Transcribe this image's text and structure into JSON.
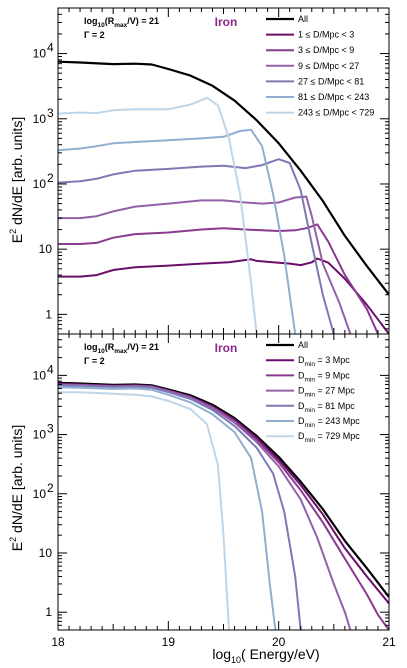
{
  "figure": {
    "x_axis_label": "log10( Energy/eV)",
    "x_label_main": "log",
    "x_label_sub": "10",
    "x_label_rest": "( Energy/eV)",
    "y_axis_label": "E2 dN/dE [arb. units]",
    "y_label_E": "E",
    "y_label_sup": "2",
    "y_label_rest": " dN/dE [arb. units]"
  },
  "chart_data": [
    {
      "type": "line",
      "header": {
        "rmax_log": "log",
        "rmax_sub": "10",
        "rmax_paren_open": "(R",
        "rmax_sub2": "max",
        "rmax_rest": "/V) = 21",
        "gamma": "Γ = 2"
      },
      "element_label": "Iron",
      "element_color": "#8b2a8b",
      "xlim": [
        18,
        21
      ],
      "ylim": [
        0.5,
        50000
      ],
      "log_y": true,
      "x_ticks": [
        "18",
        "19",
        "20",
        "21"
      ],
      "y_ticks": [
        {
          "value": 1,
          "label": "1"
        },
        {
          "value": 10,
          "label": "10"
        },
        {
          "value": 100,
          "label": "10",
          "sup": "2"
        },
        {
          "value": 1000,
          "label": "10",
          "sup": "3"
        },
        {
          "value": 10000,
          "label": "10",
          "sup": "4"
        }
      ],
      "legend_position": "top-right",
      "series": [
        {
          "name": "All",
          "color": "#000000",
          "width": 2.2,
          "points": [
            [
              18.0,
              7500
            ],
            [
              18.2,
              7300
            ],
            [
              18.5,
              6900
            ],
            [
              18.7,
              7000
            ],
            [
              18.85,
              6800
            ],
            [
              19.0,
              5800
            ],
            [
              19.2,
              4600
            ],
            [
              19.4,
              3200
            ],
            [
              19.6,
              1900
            ],
            [
              19.8,
              950
            ],
            [
              20.0,
              420
            ],
            [
              20.2,
              160
            ],
            [
              20.4,
              55
            ],
            [
              20.6,
              16
            ],
            [
              20.8,
              5.5
            ],
            [
              21.0,
              2.0
            ]
          ]
        },
        {
          "name": "1 ≤ D/Mpc < 3",
          "color": "#6b0e6b",
          "width": 2,
          "points": [
            [
              18.0,
              3.8
            ],
            [
              18.2,
              3.8
            ],
            [
              18.35,
              4.0
            ],
            [
              18.5,
              4.8
            ],
            [
              18.7,
              5.3
            ],
            [
              19.0,
              5.6
            ],
            [
              19.3,
              6.0
            ],
            [
              19.55,
              6.3
            ],
            [
              19.75,
              7.0
            ],
            [
              19.8,
              6.6
            ],
            [
              20.0,
              6.2
            ],
            [
              20.1,
              6.0
            ],
            [
              20.2,
              5.7
            ],
            [
              20.3,
              6.3
            ],
            [
              20.35,
              7.2
            ],
            [
              20.45,
              6.2
            ],
            [
              20.6,
              3.5
            ],
            [
              20.8,
              1.4
            ],
            [
              21.0,
              0.5
            ]
          ]
        },
        {
          "name": "3 ≤ D/Mpc < 9",
          "color": "#8a3a8f",
          "width": 2,
          "points": [
            [
              18.0,
              12
            ],
            [
              18.2,
              12
            ],
            [
              18.35,
              12.5
            ],
            [
              18.5,
              15
            ],
            [
              18.7,
              17
            ],
            [
              19.0,
              18
            ],
            [
              19.3,
              20
            ],
            [
              19.5,
              21
            ],
            [
              19.7,
              20
            ],
            [
              19.85,
              19.5
            ],
            [
              20.0,
              19
            ],
            [
              20.15,
              19.5
            ],
            [
              20.25,
              21
            ],
            [
              20.35,
              24
            ],
            [
              20.45,
              13
            ],
            [
              20.6,
              4
            ],
            [
              20.8,
              1.2
            ],
            [
              20.9,
              0.5
            ]
          ]
        },
        {
          "name": "9 ≤ D/Mpc < 27",
          "color": "#9460a8",
          "width": 2,
          "points": [
            [
              18.0,
              30
            ],
            [
              18.2,
              30
            ],
            [
              18.35,
              32
            ],
            [
              18.5,
              38
            ],
            [
              18.7,
              45
            ],
            [
              19.0,
              50
            ],
            [
              19.3,
              56
            ],
            [
              19.5,
              56
            ],
            [
              19.7,
              52
            ],
            [
              19.85,
              50
            ],
            [
              20.0,
              52
            ],
            [
              20.15,
              62
            ],
            [
              20.25,
              64
            ],
            [
              20.3,
              32
            ],
            [
              20.4,
              6
            ],
            [
              20.55,
              1.5
            ],
            [
              20.65,
              0.5
            ]
          ]
        },
        {
          "name": "27 ≤ D/Mpc < 81",
          "color": "#7c7ab5",
          "width": 2,
          "points": [
            [
              18.0,
              105
            ],
            [
              18.2,
              110
            ],
            [
              18.35,
              120
            ],
            [
              18.5,
              140
            ],
            [
              18.7,
              160
            ],
            [
              19.0,
              170
            ],
            [
              19.3,
              185
            ],
            [
              19.5,
              190
            ],
            [
              19.7,
              175
            ],
            [
              19.85,
              195
            ],
            [
              20.0,
              240
            ],
            [
              20.1,
              210
            ],
            [
              20.2,
              80
            ],
            [
              20.3,
              12
            ],
            [
              20.4,
              2
            ],
            [
              20.5,
              0.5
            ]
          ]
        },
        {
          "name": "81 ≤ D/Mpc < 243",
          "color": "#90aed0",
          "width": 2,
          "points": [
            [
              18.0,
              330
            ],
            [
              18.2,
              350
            ],
            [
              18.35,
              380
            ],
            [
              18.5,
              420
            ],
            [
              18.7,
              440
            ],
            [
              19.0,
              470
            ],
            [
              19.3,
              500
            ],
            [
              19.5,
              530
            ],
            [
              19.65,
              650
            ],
            [
              19.75,
              680
            ],
            [
              19.85,
              380
            ],
            [
              19.95,
              70
            ],
            [
              20.05,
              8
            ],
            [
              20.15,
              0.5
            ]
          ]
        },
        {
          "name": "243 ≤ D/Mpc < 729",
          "color": "#bed6e8",
          "width": 2,
          "points": [
            [
              18.0,
              1200
            ],
            [
              18.2,
              1250
            ],
            [
              18.35,
              1220
            ],
            [
              18.5,
              1350
            ],
            [
              18.7,
              1400
            ],
            [
              19.0,
              1400
            ],
            [
              19.2,
              1650
            ],
            [
              19.35,
              2100
            ],
            [
              19.45,
              1600
            ],
            [
              19.55,
              500
            ],
            [
              19.65,
              70
            ],
            [
              19.75,
              3
            ],
            [
              19.8,
              0.5
            ]
          ]
        }
      ]
    },
    {
      "type": "line",
      "header": {
        "rmax_log": "log",
        "rmax_sub": "10",
        "rmax_paren_open": "(R",
        "rmax_sub2": "max",
        "rmax_rest": "/V) = 21",
        "gamma": "Γ = 2"
      },
      "element_label": "Iron",
      "element_color": "#8b2a8b",
      "xlim": [
        18,
        21
      ],
      "ylim": [
        0.5,
        50000
      ],
      "log_y": true,
      "x_ticks": [
        "18",
        "19",
        "20",
        "21"
      ],
      "y_ticks": [
        {
          "value": 1,
          "label": "1"
        },
        {
          "value": 10,
          "label": "10"
        },
        {
          "value": 100,
          "label": "10",
          "sup": "2"
        },
        {
          "value": 1000,
          "label": "10",
          "sup": "3"
        },
        {
          "value": 10000,
          "label": "10",
          "sup": "4"
        }
      ],
      "legend_position": "top-right",
      "series": [
        {
          "name": "All",
          "prefix": "All",
          "color": "#000000",
          "width": 2.2,
          "points": [
            [
              18.0,
              7500
            ],
            [
              18.2,
              7300
            ],
            [
              18.5,
              6900
            ],
            [
              18.7,
              7000
            ],
            [
              18.85,
              6800
            ],
            [
              19.0,
              5800
            ],
            [
              19.2,
              4600
            ],
            [
              19.4,
              3200
            ],
            [
              19.6,
              1900
            ],
            [
              19.8,
              950
            ],
            [
              20.0,
              420
            ],
            [
              20.2,
              160
            ],
            [
              20.4,
              55
            ],
            [
              20.6,
              16
            ],
            [
              20.8,
              5.5
            ],
            [
              21.0,
              1.8
            ]
          ]
        },
        {
          "name": "Dmin = 3 Mpc",
          "prefix": "D",
          "sub": "min",
          "suffix": " = 3 Mpc",
          "color": "#6b0e6b",
          "width": 2,
          "points": [
            [
              18.0,
              7200
            ],
            [
              18.2,
              7000
            ],
            [
              18.5,
              6700
            ],
            [
              18.7,
              6800
            ],
            [
              18.85,
              6600
            ],
            [
              19.0,
              5600
            ],
            [
              19.2,
              4400
            ],
            [
              19.4,
              3000
            ],
            [
              19.6,
              1800
            ],
            [
              19.8,
              880
            ],
            [
              20.0,
              380
            ],
            [
              20.2,
              140
            ],
            [
              20.4,
              45
            ],
            [
              20.6,
              12
            ],
            [
              20.8,
              4
            ],
            [
              21.0,
              1.4
            ]
          ]
        },
        {
          "name": "Dmin = 9 Mpc",
          "prefix": "D",
          "sub": "min",
          "suffix": " = 9 Mpc",
          "color": "#8a3a8f",
          "width": 2,
          "points": [
            [
              18.0,
              7000
            ],
            [
              18.2,
              6900
            ],
            [
              18.5,
              6600
            ],
            [
              18.7,
              6700
            ],
            [
              18.85,
              6500
            ],
            [
              19.0,
              5500
            ],
            [
              19.2,
              4300
            ],
            [
              19.4,
              2900
            ],
            [
              19.6,
              1700
            ],
            [
              19.8,
              820
            ],
            [
              20.0,
              340
            ],
            [
              20.2,
              115
            ],
            [
              20.4,
              33
            ],
            [
              20.6,
              8
            ],
            [
              20.8,
              2
            ],
            [
              20.9,
              0.9
            ],
            [
              21.0,
              0.5
            ]
          ]
        },
        {
          "name": "Dmin = 27 Mpc",
          "prefix": "D",
          "sub": "min",
          "suffix": " = 27 Mpc",
          "color": "#9460a8",
          "width": 2,
          "points": [
            [
              18.0,
              6900
            ],
            [
              18.2,
              6800
            ],
            [
              18.5,
              6500
            ],
            [
              18.7,
              6600
            ],
            [
              18.85,
              6400
            ],
            [
              19.0,
              5400
            ],
            [
              19.2,
              4200
            ],
            [
              19.4,
              2800
            ],
            [
              19.6,
              1600
            ],
            [
              19.8,
              750
            ],
            [
              20.0,
              290
            ],
            [
              20.2,
              80
            ],
            [
              20.35,
              18
            ],
            [
              20.5,
              3
            ],
            [
              20.6,
              1
            ],
            [
              20.65,
              0.5
            ]
          ]
        },
        {
          "name": "Dmin = 81 Mpc",
          "prefix": "D",
          "sub": "min",
          "suffix": " = 81 Mpc",
          "color": "#7c7ab5",
          "width": 2,
          "points": [
            [
              18.0,
              6800
            ],
            [
              18.2,
              6700
            ],
            [
              18.5,
              6400
            ],
            [
              18.7,
              6500
            ],
            [
              18.85,
              6200
            ],
            [
              19.0,
              5200
            ],
            [
              19.2,
              4000
            ],
            [
              19.4,
              2600
            ],
            [
              19.6,
              1400
            ],
            [
              19.8,
              600
            ],
            [
              19.95,
              220
            ],
            [
              20.05,
              50
            ],
            [
              20.15,
              4
            ],
            [
              20.2,
              0.5
            ]
          ]
        },
        {
          "name": "Dmin = 243 Mpc",
          "prefix": "D",
          "sub": "min",
          "suffix": " = 243 Mpc",
          "color": "#90aed0",
          "width": 2,
          "points": [
            [
              18.0,
              6300
            ],
            [
              18.2,
              6200
            ],
            [
              18.5,
              5900
            ],
            [
              18.7,
              6000
            ],
            [
              18.85,
              5700
            ],
            [
              19.0,
              4700
            ],
            [
              19.2,
              3500
            ],
            [
              19.4,
              2200
            ],
            [
              19.6,
              1100
            ],
            [
              19.75,
              400
            ],
            [
              19.85,
              50
            ],
            [
              19.92,
              3
            ],
            [
              19.97,
              0.5
            ]
          ]
        },
        {
          "name": "Dmin = 729 Mpc",
          "prefix": "D",
          "sub": "min",
          "suffix": " = 729 Mpc",
          "color": "#bed6e8",
          "width": 2,
          "points": [
            [
              18.0,
              5200
            ],
            [
              18.2,
              5200
            ],
            [
              18.5,
              4900
            ],
            [
              18.7,
              4700
            ],
            [
              18.85,
              4400
            ],
            [
              19.0,
              3700
            ],
            [
              19.2,
              2700
            ],
            [
              19.35,
              1500
            ],
            [
              19.45,
              300
            ],
            [
              19.5,
              20
            ],
            [
              19.55,
              0.5
            ]
          ]
        }
      ]
    }
  ]
}
